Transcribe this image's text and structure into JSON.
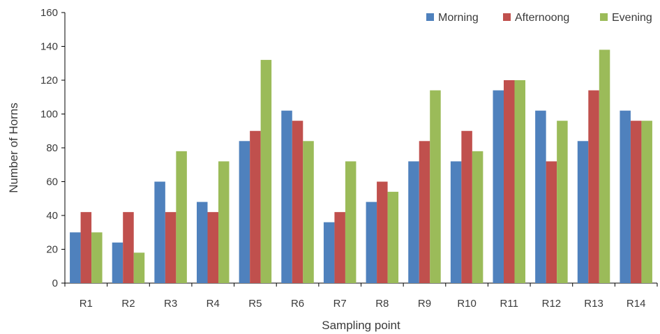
{
  "chart_data": {
    "type": "bar",
    "title": "",
    "xlabel": "Sampling point",
    "ylabel": "Number of Horns",
    "ylim": [
      0,
      160
    ],
    "yticks": [
      0,
      20,
      40,
      60,
      80,
      100,
      120,
      140,
      160
    ],
    "grid": false,
    "legend_position": "top-right",
    "categories": [
      "R1",
      "R2",
      "R3",
      "R4",
      "R5",
      "R6",
      "R7",
      "R8",
      "R9",
      "R10",
      "R11",
      "R12",
      "R13",
      "R14"
    ],
    "series": [
      {
        "name": "Morning",
        "color": "#4f81bd",
        "values": [
          30,
          24,
          60,
          48,
          84,
          102,
          36,
          48,
          72,
          72,
          114,
          102,
          84,
          102
        ]
      },
      {
        "name": "Afternoong",
        "color": "#c0504d",
        "values": [
          42,
          42,
          42,
          42,
          90,
          96,
          42,
          60,
          84,
          90,
          120,
          72,
          114,
          96
        ]
      },
      {
        "name": "Evening",
        "color": "#9bbb59",
        "values": [
          30,
          18,
          78,
          72,
          132,
          84,
          72,
          54,
          114,
          78,
          120,
          96,
          138,
          96
        ]
      }
    ]
  }
}
